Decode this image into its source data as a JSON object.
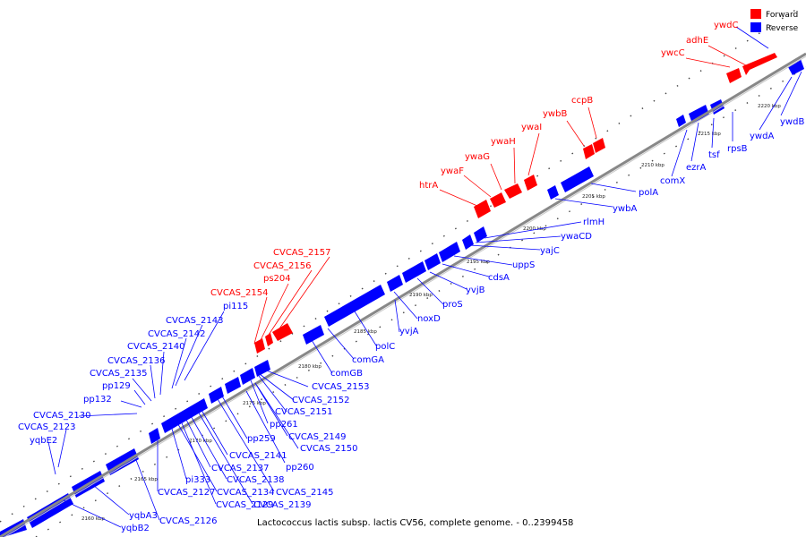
{
  "caption": "Lactococcus lactis subsp. lactis CV56, complete genome. - 0..2399458",
  "legend": {
    "forward": {
      "label": "Forward",
      "color": "#ff0000"
    },
    "reverse": {
      "label": "Reverse",
      "color": "#0000ff"
    }
  },
  "kbp_ticks": [
    {
      "kbp": 2160,
      "label": "2160 kbp"
    },
    {
      "kbp": 2165,
      "label": "2165 kbp"
    },
    {
      "kbp": 2170,
      "label": "2170 kbp"
    },
    {
      "kbp": 2175,
      "label": "2175 kbp"
    },
    {
      "kbp": 2180,
      "label": "2180 kbp"
    },
    {
      "kbp": 2185,
      "label": "2185 kbp"
    },
    {
      "kbp": 2190,
      "label": "2190 kbp"
    },
    {
      "kbp": 2195,
      "label": "2195 kbp"
    },
    {
      "kbp": 2200,
      "label": "2200 kbp"
    },
    {
      "kbp": 2205,
      "label": "2205 kbp"
    },
    {
      "kbp": 2210,
      "label": "2210 kbp"
    },
    {
      "kbp": 2215,
      "label": "2215 kbp"
    },
    {
      "kbp": 2220,
      "label": "2220 kbp"
    }
  ],
  "forward_genes": [
    "ywdC",
    "adhE",
    "ywcC",
    "ccpB",
    "ywbB",
    "ywaI",
    "ywaH",
    "ywaG",
    "ywaF",
    "htrA",
    "CVCAS_2157",
    "CVCAS_2156",
    "ps204",
    "CVCAS_2154"
  ],
  "reverse_genes_above": [
    "pi115",
    "CVCAS_2143",
    "CVCAS_2142",
    "CVCAS_2140",
    "CVCAS_2136",
    "CVCAS_2135",
    "pp129",
    "pp132",
    "CVCAS_2130",
    "CVCAS_2123",
    "yqbE2"
  ],
  "reverse_genes_below": [
    "ywdB",
    "ywdA",
    "rpsB",
    "tsf",
    "ezrA",
    "comX",
    "polA",
    "ywbA",
    "rlmH",
    "ywaCD",
    "yajC",
    "uppS",
    "cdsA",
    "yvjB",
    "proS",
    "noxD",
    "yvjA",
    "polC",
    "comGA",
    "comGB",
    "CVCAS_2153",
    "CVCAS_2152",
    "CVCAS_2151",
    "pp261",
    "CVCAS_2149",
    "CVCAS_2150",
    "pp260",
    "pp259",
    "CVCAS_2141",
    "CVCAS_2137",
    "CVCAS_2138",
    "pi333",
    "CVCAS_2145",
    "CVCAS_2139",
    "CVCAS_2134",
    "CVCAS_2127",
    "CVCAS_2129",
    "CVCAS_2126",
    "yqbA3",
    "yqbB2"
  ]
}
